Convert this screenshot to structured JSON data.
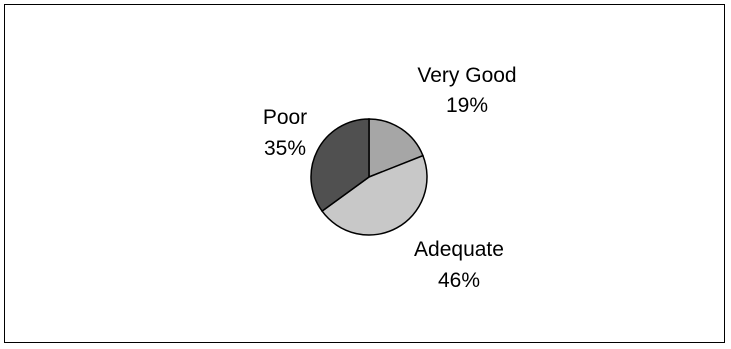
{
  "chart_data": {
    "type": "pie",
    "title": "",
    "slices": [
      {
        "label": "Very Good",
        "value": 19,
        "value_label": "19%",
        "color": "#a6a6a6"
      },
      {
        "label": "Adequate",
        "value": 46,
        "value_label": "46%",
        "color": "#c8c8c8"
      },
      {
        "label": "Poor",
        "value": 35,
        "value_label": "35%",
        "color": "#505050"
      }
    ],
    "legend": "none",
    "outline_color": "#000000"
  }
}
